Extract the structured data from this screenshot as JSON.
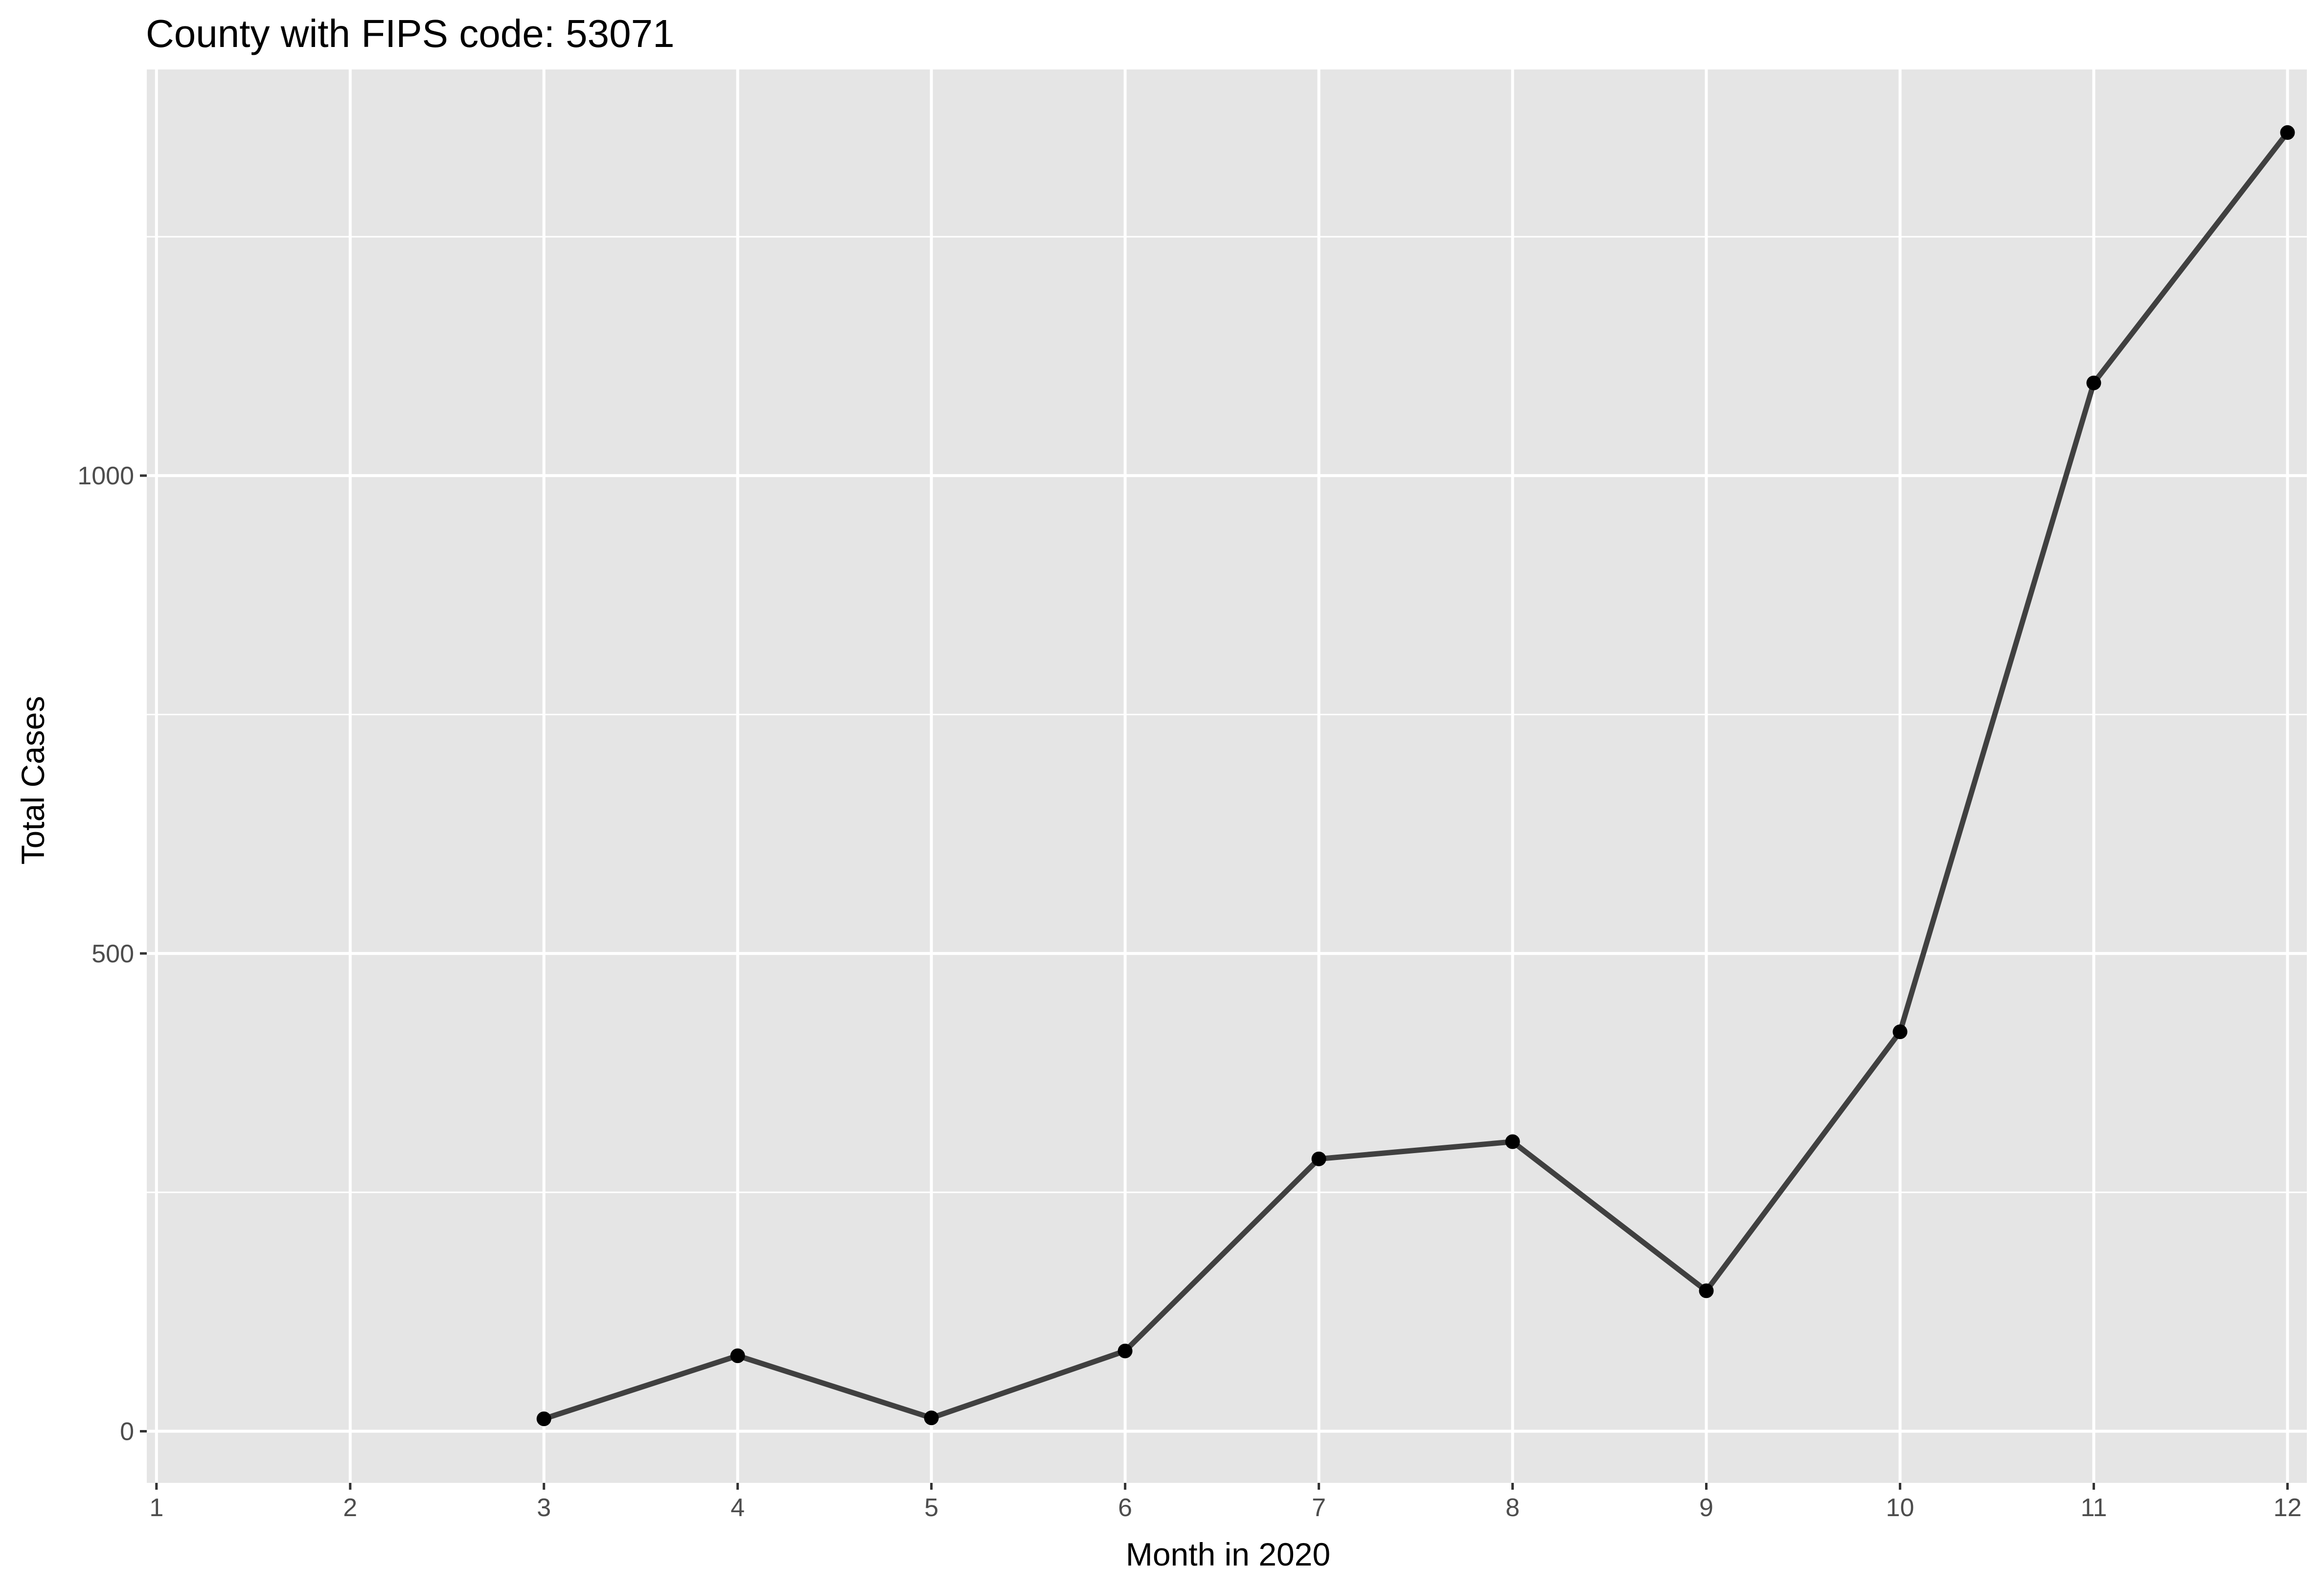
{
  "chart_data": {
    "type": "line",
    "title": "County with FIPS code: 53071",
    "xlabel": "Month in 2020",
    "ylabel": "Total Cases",
    "x": [
      3,
      4,
      5,
      6,
      7,
      8,
      9,
      10,
      11,
      12
    ],
    "series": [
      {
        "values": [
          13,
          79,
          14,
          84,
          285,
          303,
          147,
          418,
          1097,
          1359
        ]
      }
    ],
    "xticks": [
      1,
      2,
      3,
      4,
      5,
      6,
      7,
      8,
      9,
      10,
      11,
      12
    ],
    "yticks": [
      0,
      500,
      1000
    ],
    "xlim": [
      0.95,
      12.1
    ],
    "ylim": [
      -54,
      1425
    ],
    "grid": true,
    "legend": "none",
    "colors": {
      "panel_background": "#e5e5e5",
      "grid": "#ffffff",
      "line": "#404040",
      "point": "#000000",
      "tick_text": "#4d4d4d"
    }
  }
}
